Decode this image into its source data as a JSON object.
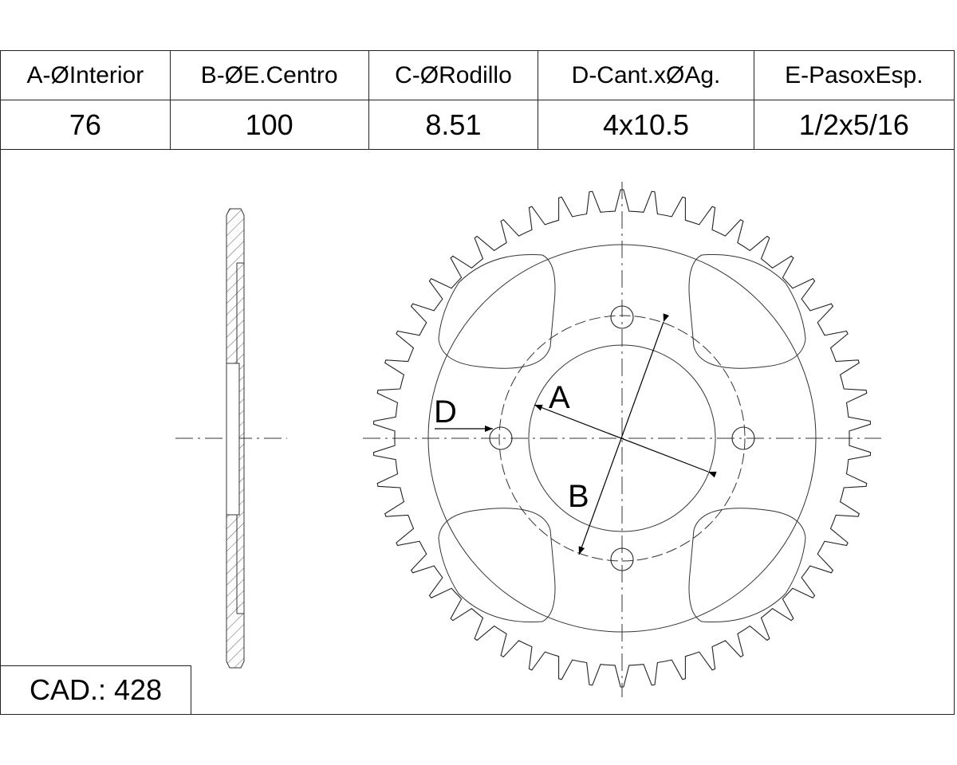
{
  "table": {
    "headers": [
      "A-ØInterior",
      "B-ØE.Centro",
      "C-ØRodillo",
      "D-Cant.xØAg.",
      "E-PasoxEsp."
    ],
    "values": [
      "76",
      "100",
      "8.51",
      "4x10.5",
      "1/2x5/16"
    ]
  },
  "cad_label": "CAD.: 428",
  "diagram": {
    "labels": {
      "a": "A",
      "b": "B",
      "d": "D"
    },
    "teeth": 50,
    "bolt_holes": 4
  }
}
